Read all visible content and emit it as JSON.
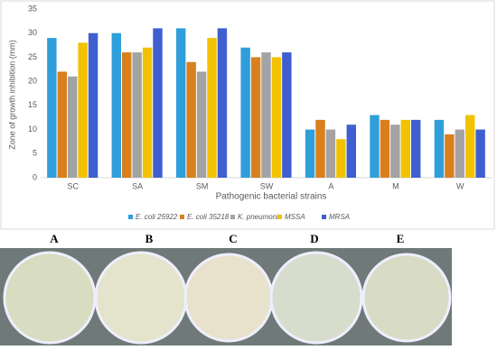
{
  "chart_data": {
    "type": "bar",
    "y_label": "Zone of growth inhibition (mm)",
    "x_label": "Pathogenic bacterial strains",
    "categories": [
      "SC",
      "SA",
      "SM",
      "SW",
      "A",
      "M",
      "W"
    ],
    "series": [
      {
        "name": "E. coli 25922",
        "color": "#2f9fdc",
        "values": [
          29,
          30,
          31,
          27,
          10,
          13,
          12
        ]
      },
      {
        "name": "E. coli 35218",
        "color": "#d9801c",
        "values": [
          22,
          26,
          24,
          25,
          12,
          12,
          9
        ]
      },
      {
        "name": "K. pneumonia",
        "color": "#a3a3a3",
        "values": [
          21,
          26,
          22,
          26,
          10,
          11,
          10
        ]
      },
      {
        "name": "MSSA",
        "color": "#f2c200",
        "values": [
          28,
          27,
          29,
          25,
          8,
          12,
          13
        ]
      },
      {
        "name": "MRSA",
        "color": "#3f5fd0",
        "values": [
          30,
          31,
          31,
          26,
          11,
          12,
          10
        ]
      }
    ],
    "ylim": [
      0,
      35
    ],
    "yticks": [
      0,
      5,
      10,
      15,
      20,
      25,
      30,
      35
    ],
    "grid": false
  },
  "panels": {
    "labels": [
      "A",
      "B",
      "C",
      "D",
      "E"
    ]
  }
}
